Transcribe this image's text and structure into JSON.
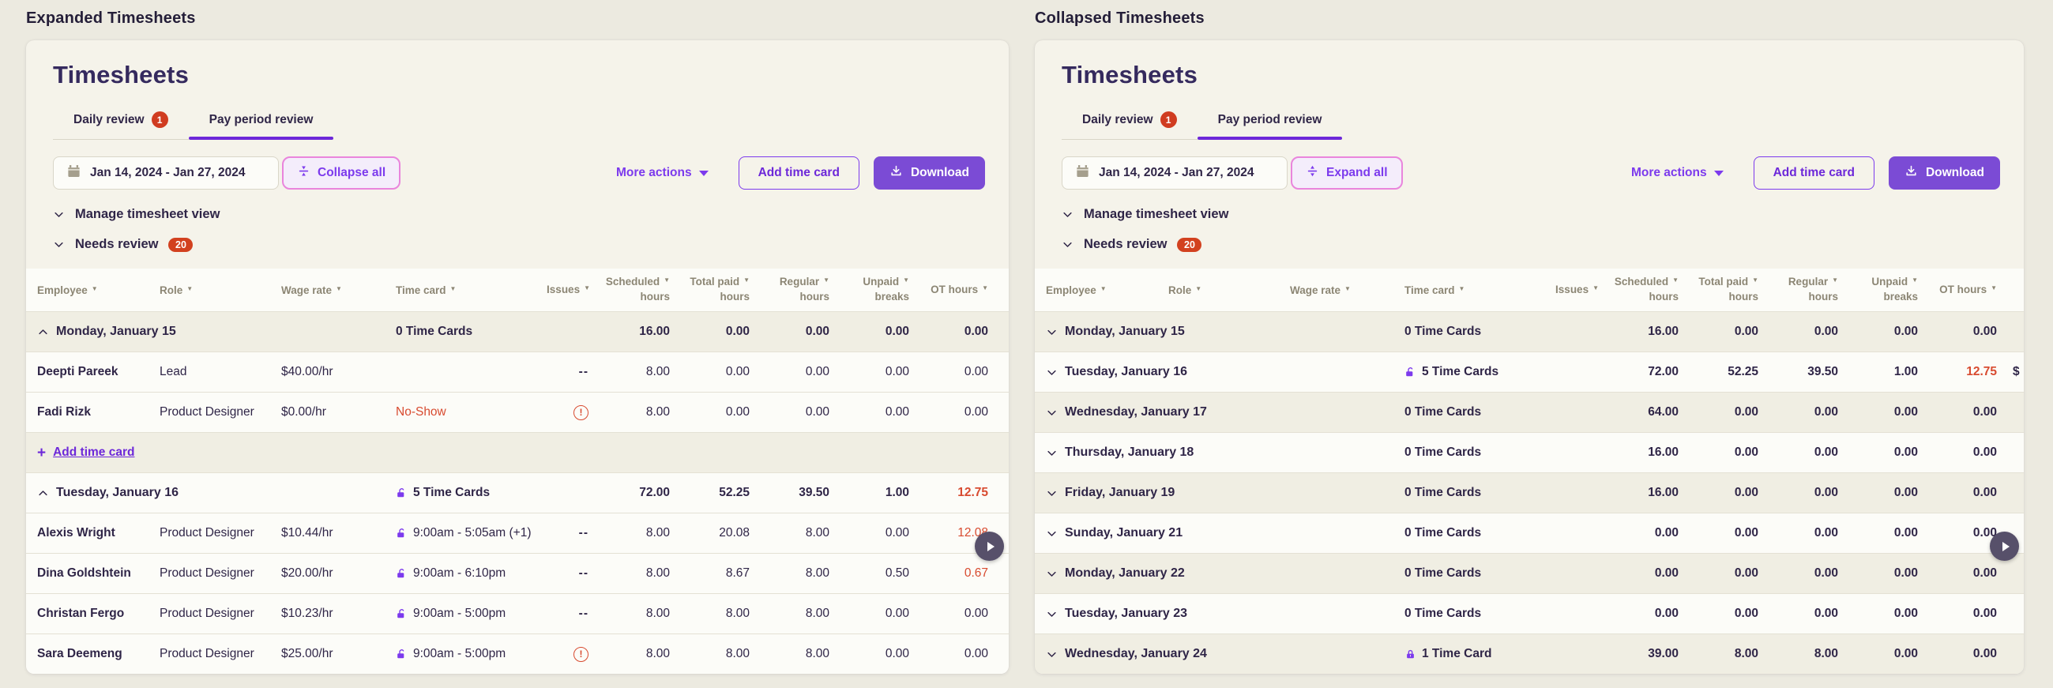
{
  "colors": {
    "accent_purple": "#7C3AED",
    "active_tab_underline": "#6D28D9",
    "primary_button_fill": "#7B4BD5",
    "pink_button_border": "#E985DC",
    "danger_red": "#D84B30",
    "badge_red": "#D2411F",
    "dark_text": "#2F2547",
    "muted_header_text": "#8C8674",
    "card_background": "#F5F3EA",
    "page_background": "#ECEAE0"
  },
  "icons": {
    "sort": "▼",
    "plus": "+",
    "warning": "!"
  },
  "panels": [
    {
      "id": "expanded",
      "heading": "Expanded Timesheets",
      "card": {
        "title": "Timesheets",
        "tabs": [
          {
            "label": "Daily review",
            "badge": "1"
          },
          {
            "label": "Pay period review"
          }
        ],
        "date_range": "Jan 14, 2024 - Jan 27, 2024",
        "toggle_all_label": "Collapse all",
        "toggle_icon": "collapse",
        "more_actions_label": "More actions",
        "add_time_card_label": "Add time card",
        "download_label": "Download",
        "manage_view_label": "Manage timesheet view",
        "needs_review_label": "Needs review",
        "needs_review_count": "20"
      },
      "table": {
        "columns": [
          {
            "id": "employee",
            "label": "Employee"
          },
          {
            "id": "role",
            "label": "Role"
          },
          {
            "id": "wage-rate",
            "label": "Wage rate"
          },
          {
            "id": "time-card",
            "label": "Time card"
          },
          {
            "id": "issues",
            "label": "Issues",
            "numeric": true
          },
          {
            "id": "scheduled-hours",
            "label": "Scheduled",
            "label2": "hours",
            "numeric": true
          },
          {
            "id": "total-paid-hours",
            "label": "Total paid",
            "label2": "hours",
            "numeric": true
          },
          {
            "id": "regular-hours",
            "label": "Regular",
            "label2": "hours",
            "numeric": true
          },
          {
            "id": "unpaid-breaks",
            "label": "Unpaid",
            "label2": "breaks",
            "numeric": true
          },
          {
            "id": "ot-hours",
            "label": "OT hours",
            "numeric": true
          }
        ],
        "rows": [
          {
            "kind": "group",
            "state": "expanded",
            "label": "Monday, January 15",
            "time_card": {
              "text": "0 Time Cards"
            },
            "values": [
              "16.00",
              "0.00",
              "0.00",
              "0.00",
              "0.00"
            ],
            "shade": true
          },
          {
            "kind": "employee",
            "name": "Deepti Pareek",
            "role": "Lead",
            "wage": "$40.00/hr",
            "time_card": {
              "text": ""
            },
            "issues": "--",
            "values": [
              "8.00",
              "0.00",
              "0.00",
              "0.00",
              "0.00"
            ]
          },
          {
            "kind": "employee",
            "name": "Fadi Rizk",
            "role": "Product Designer",
            "wage": "$0.00/hr",
            "time_card": {
              "text": "No-Show",
              "danger": true
            },
            "issues": "warning",
            "values": [
              "8.00",
              "0.00",
              "0.00",
              "0.00",
              "0.00"
            ]
          },
          {
            "kind": "addcard",
            "label": "Add time card",
            "shade": true
          },
          {
            "kind": "group",
            "state": "expanded",
            "label": "Tuesday, January 16",
            "time_card": {
              "text": "5 Time Cards",
              "icon": "unlock"
            },
            "values": [
              "72.00",
              "52.25",
              "39.50",
              "1.00",
              "12.75"
            ],
            "ot_red": true
          },
          {
            "kind": "employee",
            "name": "Alexis Wright",
            "role": "Product Designer",
            "wage": "$10.44/hr",
            "time_card": {
              "text": "9:00am - 5:05am (+1)",
              "icon": "unlock"
            },
            "issues": "--",
            "values": [
              "8.00",
              "20.08",
              "8.00",
              "0.00",
              "12.08"
            ],
            "ot_red": true
          },
          {
            "kind": "employee",
            "name": "Dina Goldshtein",
            "role": "Product Designer",
            "wage": "$20.00/hr",
            "time_card": {
              "text": "9:00am - 6:10pm",
              "icon": "unlock"
            },
            "issues": "--",
            "values": [
              "8.00",
              "8.67",
              "8.00",
              "0.50",
              "0.67"
            ],
            "ot_red": true
          },
          {
            "kind": "employee",
            "name": "Christan Fergo",
            "role": "Product Designer",
            "wage": "$10.23/hr",
            "time_card": {
              "text": "9:00am - 5:00pm",
              "icon": "unlock"
            },
            "issues": "--",
            "values": [
              "8.00",
              "8.00",
              "8.00",
              "0.00",
              "0.00"
            ]
          },
          {
            "kind": "employee",
            "name": "Sara Deemeng",
            "role": "Product Designer",
            "wage": "$25.00/hr",
            "time_card": {
              "text": "9:00am - 5:00pm",
              "icon": "unlock"
            },
            "issues": "warning",
            "values": [
              "8.00",
              "8.00",
              "8.00",
              "0.00",
              "0.00"
            ]
          }
        ]
      }
    },
    {
      "id": "collapsed",
      "heading": "Collapsed Timesheets",
      "card": {
        "title": "Timesheets",
        "tabs": [
          {
            "label": "Daily review",
            "badge": "1"
          },
          {
            "label": "Pay period review"
          }
        ],
        "date_range": "Jan 14, 2024 - Jan 27, 2024",
        "toggle_all_label": "Expand all",
        "toggle_icon": "expand",
        "more_actions_label": "More actions",
        "add_time_card_label": "Add time card",
        "download_label": "Download",
        "manage_view_label": "Manage timesheet view",
        "needs_review_label": "Needs review",
        "needs_review_count": "20"
      },
      "table": {
        "columns": [
          {
            "id": "employee",
            "label": "Employee"
          },
          {
            "id": "role",
            "label": "Role"
          },
          {
            "id": "wage-rate",
            "label": "Wage rate"
          },
          {
            "id": "time-card",
            "label": "Time card"
          },
          {
            "id": "issues",
            "label": "Issues",
            "numeric": true
          },
          {
            "id": "scheduled-hours",
            "label": "Scheduled",
            "label2": "hours",
            "numeric": true
          },
          {
            "id": "total-paid-hours",
            "label": "Total paid",
            "label2": "hours",
            "numeric": true
          },
          {
            "id": "regular-hours",
            "label": "Regular",
            "label2": "hours",
            "numeric": true
          },
          {
            "id": "unpaid-breaks",
            "label": "Unpaid",
            "label2": "breaks",
            "numeric": true
          },
          {
            "id": "ot-hours",
            "label": "OT hours",
            "numeric": true
          }
        ],
        "rows": [
          {
            "kind": "group",
            "state": "collapsed",
            "label": "Monday, January 15",
            "time_card": {
              "text": "0 Time Cards"
            },
            "values": [
              "16.00",
              "0.00",
              "0.00",
              "0.00",
              "0.00"
            ],
            "shade": true
          },
          {
            "kind": "group",
            "state": "collapsed",
            "label": "Tuesday, January 16",
            "time_card": {
              "text": "5 Time Cards",
              "icon": "unlock"
            },
            "values": [
              "72.00",
              "52.25",
              "39.50",
              "1.00",
              "12.75"
            ],
            "ot_red": true,
            "trail": "$"
          },
          {
            "kind": "group",
            "state": "collapsed",
            "label": "Wednesday, January 17",
            "time_card": {
              "text": "0 Time Cards"
            },
            "values": [
              "64.00",
              "0.00",
              "0.00",
              "0.00",
              "0.00"
            ],
            "shade": true
          },
          {
            "kind": "group",
            "state": "collapsed",
            "label": "Thursday, January 18",
            "time_card": {
              "text": "0 Time Cards"
            },
            "values": [
              "16.00",
              "0.00",
              "0.00",
              "0.00",
              "0.00"
            ]
          },
          {
            "kind": "group",
            "state": "collapsed",
            "label": "Friday, January 19",
            "time_card": {
              "text": "0 Time Cards"
            },
            "values": [
              "16.00",
              "0.00",
              "0.00",
              "0.00",
              "0.00"
            ],
            "shade": true
          },
          {
            "kind": "group",
            "state": "collapsed",
            "label": "Sunday, January 21",
            "time_card": {
              "text": "0 Time Cards"
            },
            "values": [
              "0.00",
              "0.00",
              "0.00",
              "0.00",
              "0.00"
            ]
          },
          {
            "kind": "group",
            "state": "collapsed",
            "label": "Monday, January 22",
            "time_card": {
              "text": "0 Time Cards"
            },
            "values": [
              "0.00",
              "0.00",
              "0.00",
              "0.00",
              "0.00"
            ],
            "shade": true
          },
          {
            "kind": "group",
            "state": "collapsed",
            "label": "Tuesday, January 23",
            "time_card": {
              "text": "0 Time Cards"
            },
            "values": [
              "0.00",
              "0.00",
              "0.00",
              "0.00",
              "0.00"
            ]
          },
          {
            "kind": "group",
            "state": "collapsed",
            "label": "Wednesday, January 24",
            "time_card": {
              "text": "1 Time Card",
              "icon": "lock"
            },
            "values": [
              "39.00",
              "8.00",
              "8.00",
              "0.00",
              "0.00"
            ],
            "shade": true
          }
        ]
      }
    }
  ]
}
